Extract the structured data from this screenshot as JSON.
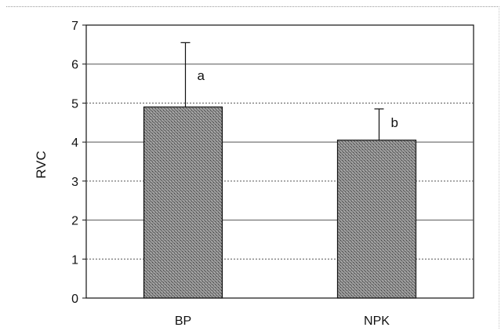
{
  "chart_data": {
    "type": "bar",
    "categories": [
      "BP",
      "NPK"
    ],
    "values": [
      4.9,
      4.05
    ],
    "errors": [
      1.65,
      0.8
    ],
    "annotations": [
      "a",
      "b"
    ],
    "xlabel": "",
    "ylabel": "RVC",
    "ylim": [
      0,
      7
    ],
    "yticks": [
      0,
      1,
      2,
      3,
      4,
      5,
      6,
      7
    ],
    "grid": true,
    "legend": "none",
    "bar_color": "#8c8c8c",
    "gridline_color": "#555555"
  }
}
